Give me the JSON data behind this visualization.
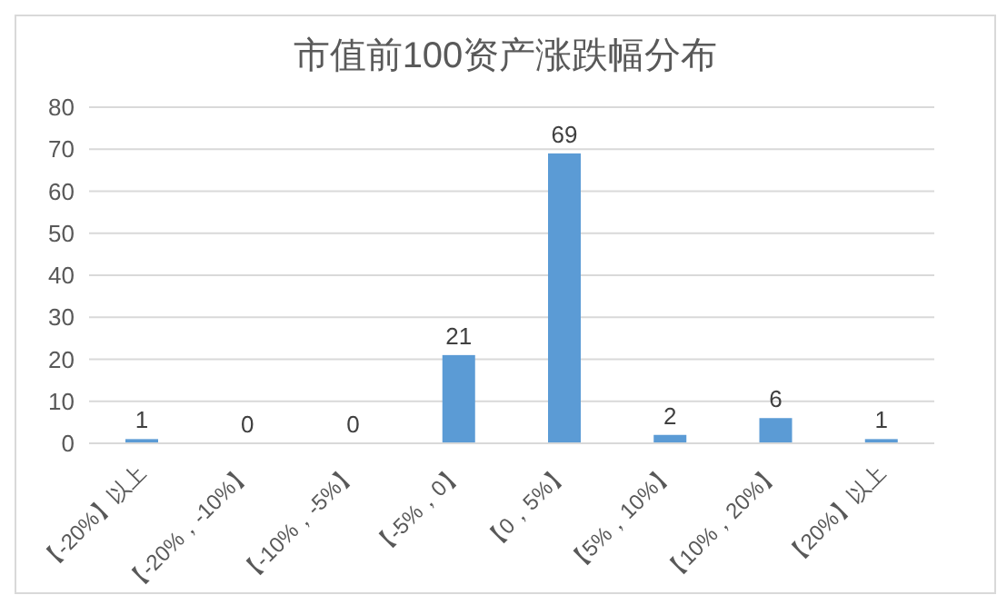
{
  "chart_data": {
    "type": "bar",
    "title": "市值前100资产涨跌幅分布",
    "categories": [
      "【-20%】以上",
      "【-20%，-10%】",
      "【-10%，-5%】",
      "【-5%，0】",
      "【0，5%】",
      "【5%，10%】",
      "【10%，20%】",
      "【20%】以上"
    ],
    "values": [
      1,
      0,
      0,
      21,
      69,
      2,
      6,
      1
    ],
    "color": "#5b9bd5",
    "ylim": [
      0,
      80
    ],
    "yticks": [
      0,
      10,
      20,
      30,
      40,
      50,
      60,
      70,
      80
    ],
    "grid": "y",
    "data_labels": true
  }
}
